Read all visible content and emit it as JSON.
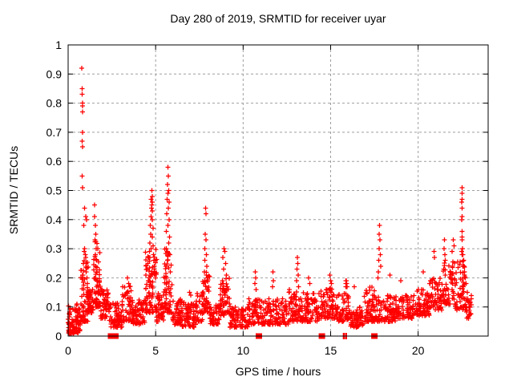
{
  "page": {
    "background": "#ffffff"
  },
  "chart_data": {
    "type": "scatter",
    "title": "Day 280 of 2019, SRMTID for receiver uyar",
    "xlabel": "GPS time / hours",
    "ylabel": "SRMTID / TECUs",
    "xlim": [
      0,
      24
    ],
    "ylim": [
      0,
      1
    ],
    "xticks": [
      0,
      5,
      10,
      15,
      20
    ],
    "yticks": [
      0,
      0.1,
      0.2,
      0.3,
      0.4,
      0.5,
      0.6,
      0.7,
      0.8,
      0.9,
      1
    ],
    "grid": {
      "show": true,
      "color": "#9e9e9e",
      "dash": "3,3"
    },
    "legend": "none",
    "plot_background": "#ffffff",
    "axis_color": "#000000",
    "marker": {
      "shape": "plus",
      "color": "#ff0000",
      "size": 7
    },
    "series": [
      {
        "name": "SRMTID",
        "color": "#ff0000",
        "notable_points": [
          [
            0.78,
            0.92
          ],
          [
            0.8,
            0.85
          ],
          [
            0.8,
            0.83
          ],
          [
            0.82,
            0.8
          ],
          [
            0.82,
            0.79
          ],
          [
            0.83,
            0.77
          ],
          [
            0.82,
            0.7
          ],
          [
            0.81,
            0.67
          ],
          [
            0.82,
            0.65
          ],
          [
            0.8,
            0.55
          ],
          [
            0.83,
            0.51
          ],
          [
            0.95,
            0.44
          ],
          [
            1.0,
            0.41
          ],
          [
            1.05,
            0.4
          ],
          [
            0.9,
            0.38
          ],
          [
            0.95,
            0.3
          ],
          [
            0.92,
            0.29
          ],
          [
            0.98,
            0.28
          ],
          [
            1.0,
            0.27
          ],
          [
            0.88,
            0.25
          ],
          [
            1.02,
            0.22
          ],
          [
            0.85,
            0.21
          ],
          [
            1.08,
            0.2
          ],
          [
            1.1,
            0.18
          ],
          [
            1.5,
            0.45
          ],
          [
            1.52,
            0.41
          ],
          [
            1.55,
            0.38
          ],
          [
            1.58,
            0.35
          ],
          [
            1.53,
            0.33
          ],
          [
            1.6,
            0.3
          ],
          [
            1.56,
            0.28
          ],
          [
            1.62,
            0.26
          ],
          [
            1.58,
            0.24
          ],
          [
            1.65,
            0.22
          ],
          [
            1.55,
            0.2
          ],
          [
            1.68,
            0.19
          ],
          [
            1.63,
            0.17
          ],
          [
            1.7,
            0.15
          ],
          [
            3.4,
            0.2
          ],
          [
            3.45,
            0.18
          ],
          [
            3.5,
            0.17
          ],
          [
            4.78,
            0.5
          ],
          [
            4.8,
            0.48
          ],
          [
            4.75,
            0.47
          ],
          [
            4.82,
            0.46
          ],
          [
            4.78,
            0.45
          ],
          [
            4.76,
            0.44
          ],
          [
            4.8,
            0.43
          ],
          [
            4.74,
            0.41
          ],
          [
            4.82,
            0.4
          ],
          [
            4.7,
            0.38
          ],
          [
            4.85,
            0.37
          ],
          [
            4.72,
            0.35
          ],
          [
            4.8,
            0.34
          ],
          [
            4.68,
            0.32
          ],
          [
            4.86,
            0.31
          ],
          [
            4.75,
            0.3
          ],
          [
            4.65,
            0.29
          ],
          [
            4.88,
            0.28
          ],
          [
            4.6,
            0.27
          ],
          [
            4.9,
            0.26
          ],
          [
            4.55,
            0.25
          ],
          [
            4.92,
            0.24
          ],
          [
            4.5,
            0.23
          ],
          [
            4.95,
            0.22
          ],
          [
            4.45,
            0.21
          ],
          [
            5.0,
            0.2
          ],
          [
            5.7,
            0.58
          ],
          [
            5.72,
            0.55
          ],
          [
            5.68,
            0.52
          ],
          [
            5.74,
            0.5
          ],
          [
            5.7,
            0.49
          ],
          [
            5.66,
            0.47
          ],
          [
            5.76,
            0.46
          ],
          [
            5.72,
            0.44
          ],
          [
            5.64,
            0.42
          ],
          [
            5.78,
            0.4
          ],
          [
            5.7,
            0.38
          ],
          [
            5.62,
            0.36
          ],
          [
            5.8,
            0.34
          ],
          [
            5.74,
            0.32
          ],
          [
            5.6,
            0.3
          ],
          [
            5.82,
            0.28
          ],
          [
            5.68,
            0.26
          ],
          [
            5.58,
            0.24
          ],
          [
            5.85,
            0.22
          ],
          [
            5.55,
            0.2
          ],
          [
            6.95,
            0.15
          ],
          [
            7.0,
            0.14
          ],
          [
            7.85,
            0.44
          ],
          [
            7.87,
            0.42
          ],
          [
            7.83,
            0.35
          ],
          [
            7.88,
            0.33
          ],
          [
            7.82,
            0.3
          ],
          [
            7.9,
            0.28
          ],
          [
            7.8,
            0.26
          ],
          [
            7.92,
            0.24
          ],
          [
            7.78,
            0.22
          ],
          [
            7.95,
            0.2
          ],
          [
            7.75,
            0.18
          ],
          [
            7.98,
            0.16
          ],
          [
            8.9,
            0.3
          ],
          [
            8.95,
            0.29
          ],
          [
            8.85,
            0.27
          ],
          [
            9.0,
            0.25
          ],
          [
            8.88,
            0.23
          ],
          [
            9.05,
            0.21
          ],
          [
            8.82,
            0.19
          ],
          [
            9.1,
            0.17
          ],
          [
            8.92,
            0.15
          ],
          [
            10.7,
            0.22
          ],
          [
            10.72,
            0.2
          ],
          [
            10.68,
            0.18
          ],
          [
            10.74,
            0.16
          ],
          [
            11.7,
            0.22
          ],
          [
            11.72,
            0.19
          ],
          [
            11.68,
            0.17
          ],
          [
            13.1,
            0.27
          ],
          [
            13.12,
            0.25
          ],
          [
            13.08,
            0.23
          ],
          [
            13.14,
            0.21
          ],
          [
            13.06,
            0.19
          ],
          [
            13.16,
            0.17
          ],
          [
            13.75,
            0.2
          ],
          [
            13.8,
            0.18
          ],
          [
            14.95,
            0.21
          ],
          [
            15.0,
            0.19
          ],
          [
            15.05,
            0.18
          ],
          [
            15.86,
            0.19
          ],
          [
            15.88,
            0.18
          ],
          [
            15.9,
            0.19
          ],
          [
            15.9,
            0.18
          ],
          [
            15.92,
            0.18
          ],
          [
            15.94,
            0.17
          ],
          [
            15.88,
            0.17
          ],
          [
            15.92,
            0.17
          ],
          [
            16.35,
            0.17
          ],
          [
            17.8,
            0.38
          ],
          [
            17.78,
            0.35
          ],
          [
            17.82,
            0.33
          ],
          [
            17.76,
            0.3
          ],
          [
            17.84,
            0.28
          ],
          [
            17.74,
            0.26
          ],
          [
            17.86,
            0.24
          ],
          [
            17.72,
            0.22
          ],
          [
            17.7,
            0.2
          ],
          [
            18.4,
            0.21
          ],
          [
            19.0,
            0.19
          ],
          [
            20.3,
            0.22
          ],
          [
            20.9,
            0.29
          ],
          [
            20.92,
            0.27
          ],
          [
            21.5,
            0.33
          ],
          [
            21.48,
            0.3
          ],
          [
            21.52,
            0.28
          ],
          [
            22.0,
            0.33
          ],
          [
            22.05,
            0.31
          ],
          [
            21.95,
            0.29
          ],
          [
            22.5,
            0.51
          ],
          [
            22.5,
            0.49
          ],
          [
            22.52,
            0.47
          ],
          [
            22.48,
            0.46
          ],
          [
            22.5,
            0.44
          ],
          [
            22.52,
            0.41
          ],
          [
            22.48,
            0.4
          ],
          [
            22.5,
            0.36
          ],
          [
            22.52,
            0.34
          ],
          [
            22.5,
            0.33
          ],
          [
            22.54,
            0.3
          ],
          [
            22.48,
            0.29
          ],
          [
            22.5,
            0.28
          ],
          [
            22.56,
            0.28
          ],
          [
            22.6,
            0.26
          ],
          [
            22.62,
            0.24
          ],
          [
            22.65,
            0.22
          ],
          [
            22.7,
            0.2
          ],
          [
            22.75,
            0.18
          ],
          [
            22.8,
            0.15
          ],
          [
            22.85,
            0.12
          ],
          [
            22.9,
            0.1
          ]
        ],
        "noise_band_fields": [
          "x0",
          "x1",
          "n",
          "ymin",
          "ymax",
          "bias_exp"
        ],
        "noise_bands": [
          [
            0.0,
            0.7,
            95,
            0.01,
            0.11,
            1.8
          ],
          [
            0.7,
            1.15,
            60,
            0.05,
            0.26,
            2.2
          ],
          [
            1.1,
            1.45,
            45,
            0.08,
            0.16,
            1.5
          ],
          [
            1.45,
            1.85,
            60,
            0.1,
            0.33,
            2.2
          ],
          [
            1.85,
            2.3,
            50,
            0.06,
            0.16,
            1.5
          ],
          [
            2.3,
            3.1,
            70,
            0.03,
            0.12,
            1.5
          ],
          [
            3.1,
            3.7,
            55,
            0.05,
            0.18,
            1.8
          ],
          [
            3.7,
            4.4,
            60,
            0.04,
            0.13,
            1.5
          ],
          [
            4.4,
            5.05,
            80,
            0.08,
            0.32,
            2.0
          ],
          [
            5.05,
            5.45,
            40,
            0.05,
            0.16,
            1.5
          ],
          [
            5.45,
            5.95,
            60,
            0.08,
            0.3,
            2.0
          ],
          [
            5.95,
            6.5,
            55,
            0.04,
            0.13,
            1.5
          ],
          [
            6.5,
            7.3,
            70,
            0.03,
            0.12,
            1.5
          ],
          [
            7.3,
            7.7,
            35,
            0.05,
            0.15,
            1.5
          ],
          [
            7.7,
            8.1,
            45,
            0.08,
            0.22,
            1.8
          ],
          [
            8.1,
            8.65,
            45,
            0.04,
            0.11,
            1.5
          ],
          [
            8.65,
            9.25,
            55,
            0.07,
            0.2,
            1.8
          ],
          [
            9.25,
            10.3,
            85,
            0.03,
            0.1,
            1.5
          ],
          [
            10.3,
            11.1,
            65,
            0.04,
            0.13,
            1.6
          ],
          [
            11.1,
            12.6,
            120,
            0.04,
            0.13,
            1.6
          ],
          [
            12.6,
            13.35,
            65,
            0.05,
            0.16,
            1.7
          ],
          [
            13.35,
            14.25,
            75,
            0.05,
            0.15,
            1.6
          ],
          [
            14.25,
            15.35,
            90,
            0.06,
            0.17,
            1.7
          ],
          [
            15.35,
            16.05,
            60,
            0.05,
            0.16,
            1.6
          ],
          [
            16.05,
            16.85,
            65,
            0.03,
            0.1,
            1.5
          ],
          [
            16.85,
            17.75,
            75,
            0.05,
            0.17,
            1.7
          ],
          [
            17.75,
            18.7,
            75,
            0.05,
            0.14,
            1.6
          ],
          [
            18.7,
            19.7,
            80,
            0.06,
            0.14,
            1.5
          ],
          [
            19.7,
            20.65,
            80,
            0.07,
            0.16,
            1.5
          ],
          [
            20.65,
            21.35,
            60,
            0.09,
            0.2,
            1.6
          ],
          [
            21.35,
            22.1,
            65,
            0.11,
            0.26,
            1.6
          ],
          [
            22.1,
            22.75,
            55,
            0.09,
            0.26,
            1.6
          ],
          [
            22.75,
            23.05,
            25,
            0.06,
            0.14,
            1.3
          ]
        ],
        "axis_squares": [
          2.45,
          2.7,
          10.9,
          14.5,
          17.5
        ],
        "axis_bars": [
          15.75,
          15.88
        ]
      }
    ]
  }
}
